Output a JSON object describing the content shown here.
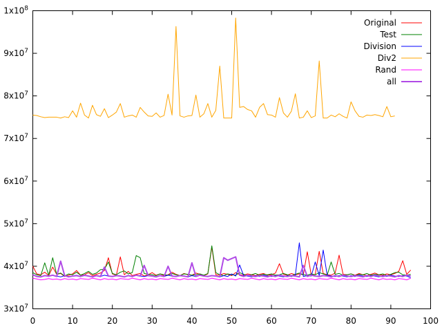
{
  "chart_data": {
    "type": "line",
    "title": "",
    "xlabel": "",
    "ylabel": "",
    "xlim": [
      0,
      100
    ],
    "ylim": [
      30000000,
      100000000
    ],
    "grid": false,
    "legend_position": "top-right",
    "xticks": [
      {
        "value": 0,
        "label": "0"
      },
      {
        "value": 10,
        "label": "10"
      },
      {
        "value": 20,
        "label": "20"
      },
      {
        "value": 30,
        "label": "30"
      },
      {
        "value": 40,
        "label": "40"
      },
      {
        "value": 50,
        "label": "50"
      },
      {
        "value": 60,
        "label": "60"
      },
      {
        "value": 70,
        "label": "70"
      },
      {
        "value": 80,
        "label": "80"
      },
      {
        "value": 90,
        "label": "90"
      },
      {
        "value": 100,
        "label": "100"
      }
    ],
    "yticks": [
      {
        "value": 30000000,
        "mantissa": "3x10",
        "exp": "7"
      },
      {
        "value": 40000000,
        "mantissa": "4x10",
        "exp": "7"
      },
      {
        "value": 50000000,
        "mantissa": "5x10",
        "exp": "7"
      },
      {
        "value": 60000000,
        "mantissa": "6x10",
        "exp": "7"
      },
      {
        "value": 70000000,
        "mantissa": "7x10",
        "exp": "7"
      },
      {
        "value": 80000000,
        "mantissa": "8x10",
        "exp": "7"
      },
      {
        "value": 90000000,
        "mantissa": "9x10",
        "exp": "7"
      },
      {
        "value": 100000000,
        "mantissa": "1x10",
        "exp": "8"
      }
    ],
    "series": [
      {
        "name": "Original",
        "color": "#ff0000",
        "width": 1,
        "x": [
          0,
          1,
          2,
          3,
          4,
          5,
          6,
          7,
          8,
          9,
          10,
          11,
          12,
          13,
          14,
          15,
          16,
          17,
          18,
          19,
          20,
          21,
          22,
          23,
          24,
          25,
          26,
          27,
          28,
          29,
          30,
          31,
          32,
          33,
          34,
          35,
          36,
          37,
          38,
          39,
          40,
          41,
          42,
          43,
          44,
          45,
          46,
          47,
          48,
          49,
          50,
          51,
          52,
          53,
          54,
          55,
          56,
          57,
          58,
          59,
          60,
          61,
          62,
          63,
          64,
          65,
          66,
          67,
          68,
          69,
          70,
          71,
          72,
          73,
          74,
          75,
          76,
          77,
          78,
          79,
          80,
          81,
          82,
          83,
          84,
          85,
          86,
          87,
          88,
          89,
          90,
          91,
          92,
          93,
          94,
          95
        ],
        "values": [
          40.0,
          38.2,
          38.0,
          38.6,
          37.8,
          39.8,
          38.1,
          38.3,
          37.6,
          37.9,
          38.2,
          39.0,
          37.9,
          38.0,
          38.5,
          37.8,
          38.1,
          38.4,
          39.0,
          42.0,
          38.2,
          37.9,
          42.2,
          38.0,
          38.8,
          37.8,
          38.1,
          38.3,
          37.7,
          38.0,
          38.5,
          37.9,
          38.2,
          37.8,
          38.0,
          38.6,
          38.1,
          37.8,
          38.3,
          38.0,
          37.9,
          38.4,
          38.1,
          37.8,
          38.2,
          44.5,
          38.0,
          37.9,
          38.3,
          38.1,
          37.8,
          38.5,
          38.0,
          37.9,
          38.2,
          38.0,
          37.8,
          38.1,
          38.3,
          37.9,
          38.0,
          38.4,
          40.6,
          38.1,
          37.9,
          38.3,
          38.0,
          38.2,
          38.0,
          43.4,
          37.9,
          38.1,
          43.5,
          38.3,
          38.0,
          37.9,
          38.4,
          42.6,
          38.1,
          38.0,
          38.2,
          37.9,
          38.3,
          38.0,
          37.8,
          38.1,
          38.4,
          38.0,
          37.9,
          38.2,
          38.0,
          38.3,
          38.8,
          41.3,
          38.1,
          39.1
        ]
      },
      {
        "name": "Test",
        "color": "#008000",
        "width": 1,
        "x": [
          0,
          1,
          2,
          3,
          4,
          5,
          6,
          7,
          8,
          9,
          10,
          11,
          12,
          13,
          14,
          15,
          16,
          17,
          18,
          19,
          20,
          21,
          22,
          23,
          24,
          25,
          26,
          27,
          28,
          29,
          30,
          31,
          32,
          33,
          34,
          35,
          36,
          37,
          38,
          39,
          40,
          41,
          42,
          43,
          44,
          45,
          46,
          47,
          48,
          49,
          50,
          51,
          52,
          53,
          54,
          55,
          56,
          57,
          58,
          59,
          60,
          61,
          62,
          63,
          64,
          65,
          66,
          67,
          68,
          69,
          70,
          71,
          72,
          73,
          74,
          75,
          76,
          77,
          78,
          79,
          80,
          81,
          82,
          83,
          84,
          85,
          86,
          87,
          88,
          89,
          90,
          91,
          92,
          93,
          94,
          95
        ],
        "values": [
          38.5,
          38.0,
          37.8,
          40.8,
          37.9,
          42.0,
          38.1,
          38.4,
          37.7,
          38.2,
          38.0,
          38.6,
          37.9,
          38.3,
          38.8,
          38.1,
          38.4,
          39.2,
          39.3,
          41.0,
          38.3,
          38.0,
          38.6,
          38.9,
          38.2,
          38.5,
          42.5,
          42.0,
          38.3,
          38.1,
          38.0,
          37.8,
          38.2,
          38.0,
          37.9,
          38.3,
          38.0,
          37.8,
          38.2,
          38.1,
          37.9,
          38.0,
          38.2,
          37.9,
          38.3,
          44.8,
          38.5,
          38.0,
          37.8,
          38.2,
          38.0,
          37.9,
          38.5,
          38.1,
          37.8,
          38.0,
          38.3,
          37.9,
          38.1,
          38.0,
          38.2,
          37.9,
          38.0,
          38.3,
          38.0,
          37.8,
          38.1,
          38.4,
          38.0,
          37.9,
          38.2,
          38.0,
          38.5,
          38.2,
          37.9,
          41.0,
          38.1,
          38.3,
          37.9,
          38.0,
          38.2,
          37.8,
          38.1,
          38.0,
          38.3,
          37.9,
          38.1,
          38.0,
          38.2,
          37.8,
          38.1,
          38.5,
          38.6,
          38.0,
          37.9,
          38.1
        ]
      },
      {
        "name": "Division",
        "color": "#0000ff",
        "width": 1,
        "x": [
          0,
          1,
          2,
          3,
          4,
          5,
          6,
          7,
          8,
          9,
          10,
          11,
          12,
          13,
          14,
          15,
          16,
          17,
          18,
          19,
          20,
          21,
          22,
          23,
          24,
          25,
          26,
          27,
          28,
          29,
          30,
          31,
          32,
          33,
          34,
          35,
          36,
          37,
          38,
          39,
          40,
          41,
          42,
          43,
          44,
          45,
          46,
          47,
          48,
          49,
          50,
          51,
          52,
          53,
          54,
          55,
          56,
          57,
          58,
          59,
          60,
          61,
          62,
          63,
          64,
          65,
          66,
          67,
          68,
          69,
          70,
          71,
          72,
          73,
          74,
          75,
          76,
          77,
          78,
          79,
          80,
          81,
          82,
          83,
          84,
          85,
          86,
          87,
          88,
          89,
          90,
          91,
          92,
          93,
          94,
          95
        ],
        "values": [
          38.0,
          37.6,
          37.5,
          37.8,
          37.6,
          37.9,
          37.7,
          37.5,
          37.8,
          37.6,
          37.7,
          37.9,
          37.6,
          37.8,
          37.7,
          37.5,
          37.8,
          37.6,
          37.9,
          37.7,
          37.6,
          37.8,
          37.7,
          37.5,
          37.8,
          37.6,
          37.9,
          37.7,
          37.6,
          37.8,
          37.7,
          37.5,
          37.8,
          37.6,
          37.9,
          37.7,
          37.6,
          37.8,
          37.7,
          37.5,
          37.8,
          37.6,
          37.9,
          37.7,
          37.6,
          37.8,
          37.7,
          37.5,
          37.8,
          37.6,
          38.2,
          37.7,
          40.3,
          37.8,
          37.7,
          37.5,
          37.8,
          37.6,
          37.9,
          37.7,
          37.6,
          37.8,
          37.7,
          37.5,
          37.8,
          37.6,
          37.9,
          45.5,
          37.6,
          37.8,
          37.7,
          41.0,
          37.8,
          43.8,
          37.9,
          37.7,
          37.6,
          37.8,
          37.7,
          37.5,
          37.8,
          37.6,
          37.9,
          37.7,
          37.6,
          37.8,
          37.7,
          37.5,
          37.8,
          37.6,
          37.9,
          37.7,
          37.6,
          37.8,
          37.7,
          37.3
        ]
      },
      {
        "name": "Div2",
        "color": "#ffa500",
        "width": 1,
        "x": [
          0,
          1,
          2,
          3,
          4,
          5,
          6,
          7,
          8,
          9,
          10,
          11,
          12,
          13,
          14,
          15,
          16,
          17,
          18,
          19,
          20,
          21,
          22,
          23,
          24,
          25,
          26,
          27,
          28,
          29,
          30,
          31,
          32,
          33,
          34,
          35,
          36,
          37,
          38,
          39,
          40,
          41,
          42,
          43,
          44,
          45,
          46,
          47,
          48,
          49,
          50,
          51,
          52,
          53,
          54,
          55,
          56,
          57,
          58,
          59,
          60,
          61,
          62,
          63,
          64,
          65,
          66,
          67,
          68,
          69,
          70,
          71,
          72,
          73,
          74,
          75,
          76,
          77,
          78,
          79,
          80,
          81,
          82,
          83,
          84,
          85,
          86,
          87,
          88,
          89,
          90,
          91
        ],
        "values": [
          75.5,
          75.4,
          75.1,
          74.9,
          75.0,
          75.0,
          75.0,
          74.8,
          75.1,
          74.9,
          76.5,
          75.0,
          78.3,
          75.5,
          74.8,
          77.8,
          75.6,
          75.2,
          77.0,
          74.9,
          75.5,
          76.2,
          78.2,
          75.0,
          75.3,
          75.5,
          75.0,
          77.3,
          76.2,
          75.3,
          75.2,
          76.0,
          75.0,
          75.4,
          80.4,
          75.5,
          96.3,
          75.3,
          75.0,
          75.3,
          75.4,
          80.2,
          75.0,
          75.8,
          78.2,
          75.0,
          76.6,
          87.0,
          74.8,
          74.8,
          74.8,
          98.3,
          77.3,
          77.5,
          76.8,
          76.5,
          75.0,
          77.3,
          78.2,
          75.6,
          75.5,
          75.0,
          79.6,
          76.0,
          75.0,
          76.4,
          80.5,
          74.8,
          75.0,
          76.5,
          74.9,
          75.3,
          88.2,
          74.8,
          74.8,
          75.5,
          75.1,
          75.8,
          75.2,
          74.8,
          78.6,
          76.5,
          75.2,
          75.0,
          75.5,
          75.4,
          75.6,
          75.4,
          75.1,
          77.5,
          75.1,
          75.3
        ]
      },
      {
        "name": "Rand",
        "color": "#ff00ff",
        "width": 1,
        "x": [
          0,
          1,
          2,
          3,
          4,
          5,
          6,
          7,
          8,
          9,
          10,
          11,
          12,
          13,
          14,
          15,
          16,
          17,
          18,
          19,
          20,
          21,
          22,
          23,
          24,
          25,
          26,
          27,
          28,
          29,
          30,
          31,
          32,
          33,
          34,
          35,
          36,
          37,
          38,
          39,
          40,
          41,
          42,
          43,
          44,
          45,
          46,
          47,
          48,
          49,
          50,
          51,
          52,
          53,
          54,
          55,
          56,
          57,
          58,
          59,
          60,
          61,
          62,
          63,
          64,
          65,
          66,
          67,
          68,
          69,
          70,
          71,
          72,
          73,
          74,
          75,
          76,
          77,
          78,
          79,
          80,
          81,
          82,
          83,
          84,
          85,
          86,
          87,
          88,
          89,
          90,
          91,
          92,
          93,
          94,
          95
        ],
        "values": [
          37.2,
          37.0,
          36.8,
          36.9,
          37.1,
          36.9,
          37.0,
          36.8,
          37.1,
          36.9,
          37.0,
          36.8,
          37.1,
          37.0,
          36.9,
          37.2,
          37.0,
          36.8,
          37.1,
          36.9,
          37.0,
          36.8,
          37.1,
          37.0,
          36.9,
          37.2,
          37.0,
          36.8,
          37.1,
          36.9,
          37.0,
          36.8,
          37.1,
          37.0,
          36.9,
          37.2,
          37.0,
          36.8,
          37.1,
          36.9,
          37.0,
          36.8,
          37.1,
          37.0,
          36.9,
          37.2,
          37.0,
          36.8,
          37.1,
          36.9,
          37.0,
          36.8,
          37.1,
          37.0,
          36.9,
          37.2,
          37.0,
          36.8,
          37.1,
          36.9,
          37.0,
          36.8,
          37.1,
          37.0,
          36.9,
          37.2,
          37.0,
          36.8,
          37.1,
          36.9,
          37.0,
          36.8,
          37.1,
          37.0,
          36.9,
          37.2,
          37.0,
          36.8,
          37.1,
          36.9,
          37.0,
          36.8,
          37.1,
          37.0,
          36.9,
          37.2,
          37.0,
          36.8,
          37.1,
          36.9,
          37.0,
          36.8,
          37.1,
          37.0,
          36.8,
          37.2
        ]
      },
      {
        "name": "all",
        "color": "#b04ae6",
        "width": 2,
        "x": [
          0,
          1,
          2,
          3,
          4,
          5,
          6,
          7,
          8,
          9,
          10,
          11,
          12,
          13,
          14,
          15,
          16,
          17,
          18,
          19,
          20,
          21,
          22,
          23,
          24,
          25,
          26,
          27,
          28,
          29,
          30,
          31,
          32,
          33,
          34,
          35,
          36,
          37,
          38,
          39,
          40,
          41,
          42,
          43,
          44,
          45,
          46,
          47,
          48,
          49,
          50,
          51,
          52,
          53,
          54,
          55,
          56,
          57,
          58,
          59,
          60,
          61,
          62,
          63,
          64,
          65,
          66,
          67,
          68,
          69,
          70,
          71,
          72,
          73,
          74,
          75,
          76,
          77,
          78,
          79,
          80,
          81,
          82,
          83,
          84,
          85,
          86,
          87,
          88,
          89,
          90,
          91,
          92,
          93,
          94,
          95
        ],
        "values": [
          38.0,
          37.6,
          37.5,
          37.8,
          37.7,
          37.9,
          37.6,
          41.2,
          37.8,
          37.5,
          37.7,
          37.8,
          37.6,
          37.9,
          37.7,
          37.5,
          37.8,
          37.6,
          39.8,
          37.7,
          37.6,
          37.8,
          37.7,
          37.5,
          37.8,
          37.6,
          37.9,
          37.7,
          40.2,
          37.8,
          37.7,
          37.5,
          37.8,
          37.6,
          40.0,
          37.7,
          37.6,
          37.8,
          37.7,
          37.5,
          40.8,
          37.6,
          37.9,
          37.7,
          37.6,
          37.8,
          37.7,
          37.5,
          42.0,
          41.4,
          41.8,
          42.2,
          37.9,
          37.6,
          37.9,
          37.7,
          37.6,
          37.8,
          37.7,
          37.5,
          37.8,
          37.6,
          37.9,
          37.7,
          37.6,
          37.8,
          37.7,
          37.5,
          40.2,
          37.6,
          37.9,
          37.7,
          37.6,
          37.8,
          37.7,
          37.5,
          37.8,
          37.6,
          37.9,
          37.7,
          37.6,
          37.8,
          37.7,
          37.5,
          37.8,
          37.6,
          37.9,
          37.7,
          37.6,
          37.8,
          37.7,
          37.5,
          37.8,
          37.6,
          37.9,
          37.7
        ]
      }
    ]
  }
}
